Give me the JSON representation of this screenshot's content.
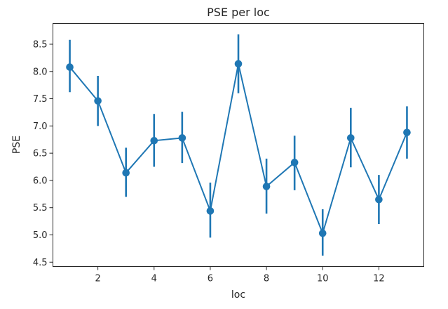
{
  "chart_data": {
    "type": "line",
    "title": "PSE per loc",
    "xlabel": "loc",
    "ylabel": "PSE",
    "xlim": [
      0.4,
      13.6
    ],
    "ylim": [
      4.42,
      8.88
    ],
    "xticks": [
      2,
      4,
      6,
      8,
      10,
      12
    ],
    "yticks": [
      4.5,
      5.0,
      5.5,
      6.0,
      6.5,
      7.0,
      7.5,
      8.0,
      8.5
    ],
    "ytick_labels": [
      "4.5",
      "5.0",
      "5.5",
      "6.0",
      "6.5",
      "7.0",
      "7.5",
      "8.0",
      "8.5"
    ],
    "grid": false,
    "series": [
      {
        "color": "#1f77b4",
        "marker": "circle",
        "x": [
          1,
          2,
          3,
          4,
          5,
          6,
          7,
          8,
          9,
          10,
          11,
          12,
          13
        ],
        "y": [
          8.08,
          7.46,
          6.14,
          6.73,
          6.78,
          5.44,
          8.14,
          5.89,
          6.33,
          5.03,
          6.78,
          5.65,
          6.88
        ],
        "err_low": [
          7.62,
          7.0,
          5.7,
          6.25,
          6.32,
          4.95,
          7.6,
          5.39,
          5.82,
          4.62,
          6.24,
          5.2,
          6.4
        ],
        "err_high": [
          8.58,
          7.92,
          6.6,
          7.22,
          7.26,
          5.96,
          8.68,
          6.4,
          6.82,
          5.47,
          7.33,
          6.1,
          7.36
        ]
      }
    ]
  }
}
